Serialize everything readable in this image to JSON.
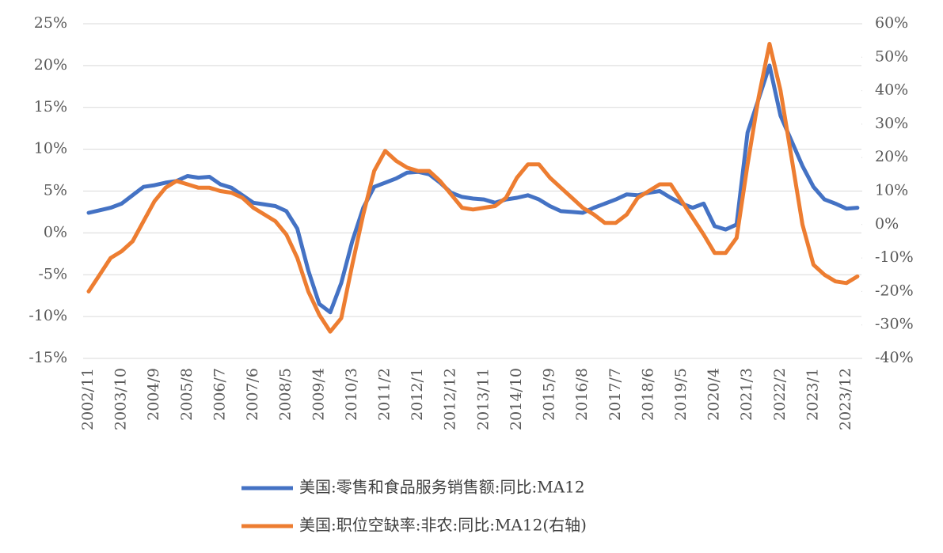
{
  "chart_data": {
    "type": "line",
    "categories": [
      "2002/11",
      null,
      null,
      "2003/10",
      null,
      null,
      "2004/9",
      null,
      null,
      "2005/8",
      null,
      null,
      "2006/7",
      null,
      null,
      "2007/6",
      null,
      null,
      "2008/5",
      null,
      null,
      "2009/4",
      null,
      null,
      "2010/3",
      null,
      null,
      "2011/2",
      null,
      null,
      "2012/1",
      null,
      null,
      "2012/12",
      null,
      null,
      "2013/11",
      null,
      null,
      "2014/10",
      null,
      null,
      "2015/9",
      null,
      null,
      "2016/8",
      null,
      null,
      "2017/7",
      null,
      null,
      "2018/6",
      null,
      null,
      "2019/5",
      null,
      null,
      "2020/4",
      null,
      null,
      "2021/3",
      null,
      null,
      "2022/2",
      null,
      null,
      "2023/1",
      null,
      null,
      "2023/12",
      null
    ],
    "series": [
      {
        "name": "美国:零售和食品服务销售额:同比:MA12",
        "color": "#4472c4",
        "axis": "y",
        "values": [
          2.4,
          2.7,
          3.0,
          3.5,
          4.5,
          5.5,
          5.7,
          6.0,
          6.2,
          6.8,
          6.6,
          6.7,
          5.8,
          5.4,
          4.5,
          3.6,
          3.4,
          3.2,
          2.6,
          0.5,
          -4.5,
          -8.5,
          -9.5,
          -6,
          -1,
          3,
          5.5,
          6.0,
          6.5,
          7.2,
          7.3,
          7.0,
          6.0,
          4.8,
          4.3,
          4.1,
          4.0,
          3.6,
          4.0,
          4.2,
          4.5,
          4.0,
          3.2,
          2.6,
          2.5,
          2.4,
          3.0,
          3.5,
          4.0,
          4.6,
          4.5,
          4.8,
          5.0,
          4.2,
          3.5,
          3.0,
          3.5,
          0.8,
          0.4,
          1.0,
          12,
          16,
          20,
          14,
          11,
          8,
          5.5,
          4.0,
          3.5,
          2.9,
          3.0
        ]
      },
      {
        "name": "美国:职位空缺率:非农:同比:MA12(右轴)",
        "color": "#ed7d31",
        "axis": "y2",
        "values": [
          -20,
          -15,
          -10,
          -8,
          -5,
          1,
          7,
          11,
          13,
          12,
          11,
          11,
          10,
          9.5,
          8,
          5,
          3,
          1,
          -3,
          -10,
          -20,
          -27,
          -32,
          -28,
          -12,
          3,
          16,
          22,
          19,
          17,
          16,
          16,
          13,
          9,
          5,
          4.5,
          5,
          5.5,
          8,
          14,
          18,
          18,
          14,
          11,
          8,
          5,
          3,
          0.5,
          0.5,
          3,
          8,
          10,
          12,
          12,
          7,
          2,
          -3,
          -8.5,
          -8.5,
          -4,
          18,
          38,
          54,
          40,
          20,
          0,
          -12,
          -15,
          -17,
          -17.5,
          -15.5
        ]
      }
    ],
    "ylim": [
      -15,
      25
    ],
    "yticks": [
      {
        "value": -15,
        "label": "-15%"
      },
      {
        "value": -10,
        "label": "-10%"
      },
      {
        "value": -5,
        "label": "-5%"
      },
      {
        "value": 0,
        "label": "0%"
      },
      {
        "value": 5,
        "label": "5%"
      },
      {
        "value": 10,
        "label": "10%"
      },
      {
        "value": 15,
        "label": "15%"
      },
      {
        "value": 20,
        "label": "20%"
      },
      {
        "value": 25,
        "label": "25%"
      }
    ],
    "y2lim": [
      -40,
      60
    ],
    "y2ticks": [
      {
        "value": -40,
        "label": "-40%"
      },
      {
        "value": -30,
        "label": "-30%"
      },
      {
        "value": -20,
        "label": "-20%"
      },
      {
        "value": -10,
        "label": "-10%"
      },
      {
        "value": 0,
        "label": "0%"
      },
      {
        "value": 10,
        "label": "10%"
      },
      {
        "value": 20,
        "label": "20%"
      },
      {
        "value": 30,
        "label": "30%"
      },
      {
        "value": 40,
        "label": "40%"
      },
      {
        "value": 50,
        "label": "50%"
      },
      {
        "value": 60,
        "label": "60%"
      }
    ],
    "grid": true
  }
}
